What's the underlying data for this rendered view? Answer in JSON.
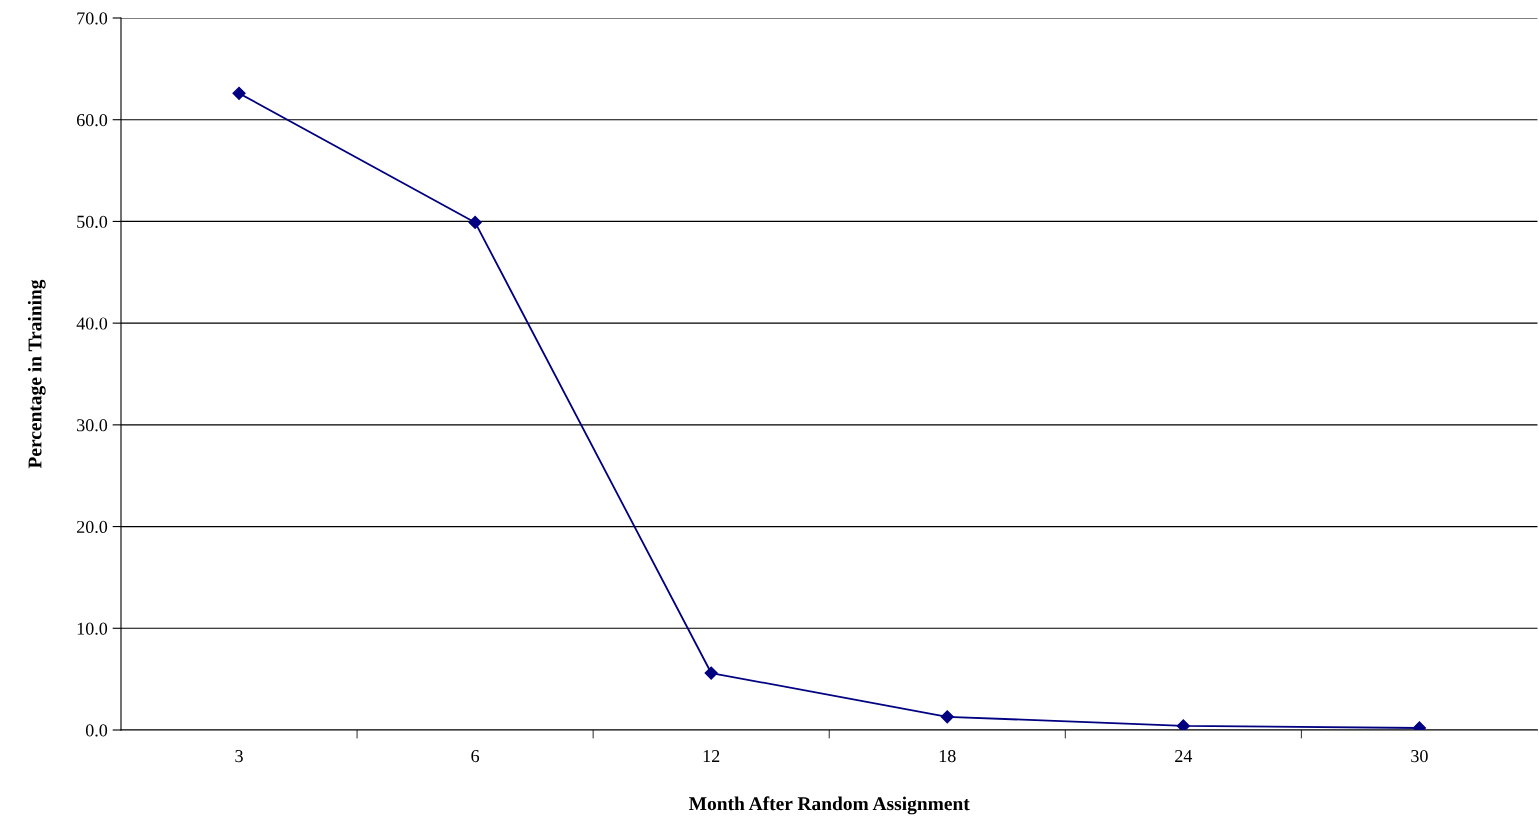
{
  "chart_data": {
    "type": "line",
    "xlabel": "Month After Random Assignment",
    "ylabel": "Percentage in Training",
    "categories": [
      "3",
      "6",
      "12",
      "18",
      "24",
      "30"
    ],
    "series": [
      {
        "color": "#000080",
        "values": [
          62.6,
          49.9,
          5.6,
          1.3,
          0.4,
          0.2
        ]
      }
    ],
    "ylim": [
      0,
      70
    ],
    "yticks": [
      {
        "value": 0,
        "label": "0.0"
      },
      {
        "value": 10,
        "label": "10.0"
      },
      {
        "value": 20,
        "label": "20.0"
      },
      {
        "value": 30,
        "label": "30.0"
      },
      {
        "value": 40,
        "label": "40.0"
      },
      {
        "value": 50,
        "label": "50.0"
      },
      {
        "value": 60,
        "label": "60.0"
      },
      {
        "value": 70,
        "label": "70.0"
      }
    ],
    "grid": "y",
    "marker": "diamond",
    "line_style": "solid",
    "legend": false
  }
}
